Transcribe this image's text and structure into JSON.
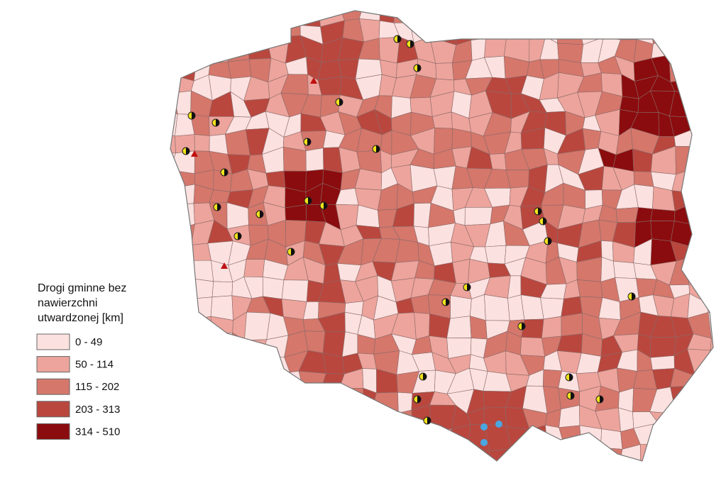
{
  "legend": {
    "title": "Drogi gminne bez nawierzchni utwardzonej [km]",
    "items": [
      {
        "label": "0 - 49",
        "color": "#fbe1e0"
      },
      {
        "label": "50 - 114",
        "color": "#eda49c"
      },
      {
        "label": "115 - 202",
        "color": "#d5776b"
      },
      {
        "label": "203 - 313",
        "color": "#b9473e"
      },
      {
        "label": "314 - 510",
        "color": "#8b0c0e"
      }
    ]
  }
}
